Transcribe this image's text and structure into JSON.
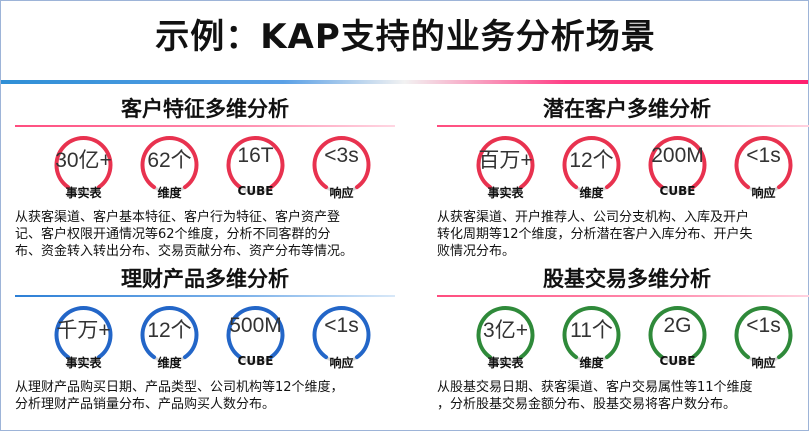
{
  "title": "示例：KAP支持的业务分析场景",
  "colors": {
    "red": "#e8324f",
    "blue": "#2366c8",
    "green": "#2f8a3a",
    "track": "#d6d6d6"
  },
  "panels": [
    {
      "title": "客户特征多维分析",
      "color": "red",
      "metrics": [
        {
          "value": "30亿+",
          "label": "事实表"
        },
        {
          "value": "62个",
          "label": "维度"
        },
        {
          "value": "16T",
          "label": "CUBE"
        },
        {
          "value": "<3s",
          "label": "响应"
        }
      ],
      "lines": [
        "从获客渠道、客户基本特征、客户行为特征、客户资产登",
        "记、客户权限开通情况等62个维度，分析不同客群的分",
        "布、资金转入转出分布、交易贡献分布、资产分布等情况。"
      ]
    },
    {
      "title": "潜在客户多维分析",
      "color": "red",
      "metrics": [
        {
          "value": "百万+",
          "label": "事实表"
        },
        {
          "value": "12个",
          "label": "维度"
        },
        {
          "value": "200M",
          "label": "CUBE"
        },
        {
          "value": "<1s",
          "label": "响应"
        }
      ],
      "lines": [
        "从获客渠道、开户推荐人、公司分支机构、入库及开户",
        "转化周期等12个维度，分析潜在客户入库分布、开户失",
        "败情况分布。"
      ]
    },
    {
      "title": "理财产品多维分析",
      "color": "blue",
      "metrics": [
        {
          "value": "千万+",
          "label": "事实表"
        },
        {
          "value": "12个",
          "label": "维度"
        },
        {
          "value": "500M",
          "label": "CUBE"
        },
        {
          "value": "<1s",
          "label": "响应"
        }
      ],
      "lines": [
        "从理财产品购买日期、产品类型、公司机构等12个维度，",
        "分析理财产品销量分布、产品购买人数分布。"
      ]
    },
    {
      "title": "股基交易多维分析",
      "color": "green",
      "metrics": [
        {
          "value": "3亿+",
          "label": "事实表"
        },
        {
          "value": "11个",
          "label": "维度"
        },
        {
          "value": "2G",
          "label": "CUBE"
        },
        {
          "value": "<1s",
          "label": "响应"
        }
      ],
      "lines": [
        "从股基交易日期、获客渠道、客户交易属性等11个维度",
        "，分析股基交易金额分布、股基交易将客户数分布。"
      ]
    }
  ]
}
